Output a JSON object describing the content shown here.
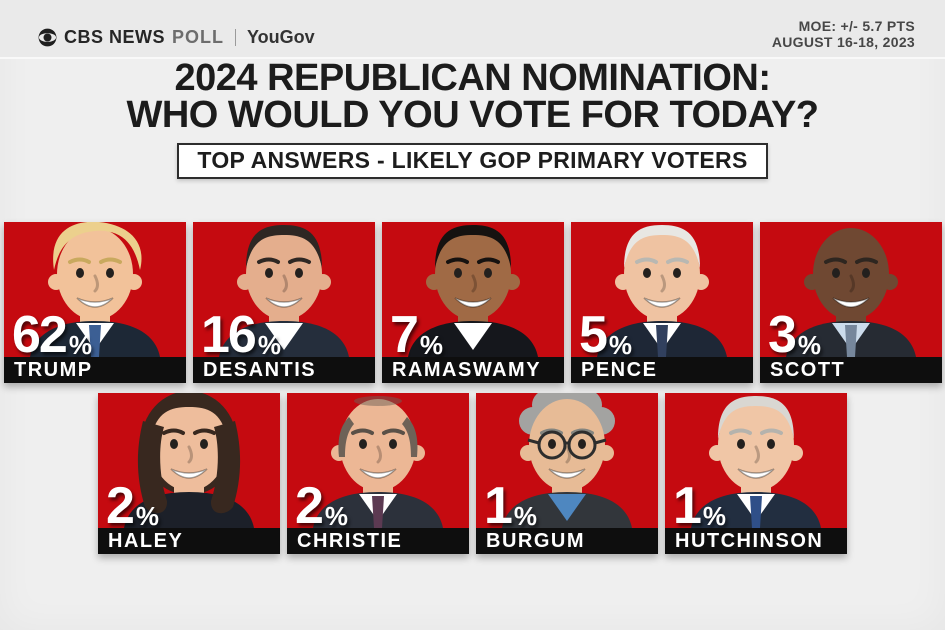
{
  "header": {
    "brand": {
      "network": "CBS NEWS",
      "product": "POLL",
      "divider": "|",
      "partner": "YouGov"
    },
    "moe_line1": "MOE: +/- 5.7 PTS",
    "moe_line2": "AUGUST 16-18, 2023"
  },
  "title": {
    "line1": "2024 REPUBLICAN NOMINATION:",
    "line2": "WHO WOULD YOU VOTE FOR TODAY?"
  },
  "subtitle": "TOP ANSWERS - LIKELY GOP PRIMARY VOTERS",
  "colors": {
    "card_red": "#c50a10",
    "strip_black": "#0e0e0e",
    "background": "#efefef",
    "title_text": "#1c1c1c",
    "pct_text": "#ffffff"
  },
  "icons": {
    "brand_eye": "cbs-eye-icon"
  },
  "chart_data": {
    "type": "bar",
    "title": "2024 REPUBLICAN NOMINATION: WHO WOULD YOU VOTE FOR TODAY?",
    "subtitle": "TOP ANSWERS - LIKELY GOP PRIMARY VOTERS",
    "categories": [
      "TRUMP",
      "DESANTIS",
      "RAMASWAMY",
      "PENCE",
      "SCOTT",
      "HALEY",
      "CHRISTIE",
      "BURGUM",
      "HUTCHINSON"
    ],
    "values": [
      62,
      16,
      7,
      5,
      3,
      2,
      2,
      1,
      1
    ],
    "unit": "%",
    "source": "CBS NEWS POLL | YouGov",
    "margin_of_error": "+/- 5.7 PTS",
    "field_dates": "AUGUST 16-18, 2023",
    "legend": false,
    "layout": "photo-cards-two-rows"
  },
  "rows": [
    [
      {
        "name": "TRUMP",
        "value": "62",
        "unit": "%",
        "avatar": {
          "hair_type": "swept",
          "hair": "#ecd08d",
          "brow": "#c9a95e",
          "skin": "#f2c29a",
          "suit": "#1d2836",
          "shirt": "#ffffff",
          "tie": "#3c5f94",
          "glasses": false
        }
      },
      {
        "name": "DESANTIS",
        "value": "16",
        "unit": "%",
        "avatar": {
          "hair_type": "short",
          "hair": "#2e2723",
          "brow": "#2e2723",
          "skin": "#e4ae8d",
          "suit": "#252e3c",
          "shirt": "#ffffff",
          "tie": null,
          "glasses": false
        }
      },
      {
        "name": "RAMASWAMY",
        "value": "7",
        "unit": "%",
        "avatar": {
          "hair_type": "short",
          "hair": "#161210",
          "brow": "#161210",
          "skin": "#a06a45",
          "suit": "#15171c",
          "shirt": "#ffffff",
          "tie": null,
          "glasses": false
        }
      },
      {
        "name": "PENCE",
        "value": "5",
        "unit": "%",
        "avatar": {
          "hair_type": "short",
          "hair": "#e8e7e3",
          "brow": "#b9b8b2",
          "skin": "#efc3a2",
          "suit": "#1e2736",
          "shirt": "#ffffff",
          "tie": "#31405e",
          "glasses": false
        }
      },
      {
        "name": "SCOTT",
        "value": "3",
        "unit": "%",
        "avatar": {
          "hair_type": "bald",
          "hair": "#2e2620",
          "brow": "#2e2620",
          "skin": "#6f4832",
          "suit": "#262b33",
          "shirt": "#ccdcec",
          "tie": "#76879c",
          "glasses": false
        }
      }
    ],
    [
      {
        "name": "HALEY",
        "value": "2",
        "unit": "%",
        "avatar": {
          "hair_type": "long",
          "hair": "#38281f",
          "brow": "#38281f",
          "skin": "#eebd9c",
          "suit": "#1c2029",
          "shirt": null,
          "tie": null,
          "glasses": false
        }
      },
      {
        "name": "CHRISTIE",
        "value": "2",
        "unit": "%",
        "avatar": {
          "hair_type": "balding",
          "hair": "#6e6257",
          "brow": "#5a5047",
          "skin": "#ecb795",
          "suit": "#2c313b",
          "shirt": "#ffffff",
          "tie": "#5c3a52",
          "glasses": false
        }
      },
      {
        "name": "BURGUM",
        "value": "1",
        "unit": "%",
        "avatar": {
          "hair_type": "curly",
          "hair": "#a3a3a1",
          "brow": "#85857f",
          "skin": "#e7bb96",
          "suit": "#32363b",
          "shirt": "#4e87c0",
          "tie": null,
          "glasses": true
        }
      },
      {
        "name": "HUTCHINSON",
        "value": "1",
        "unit": "%",
        "avatar": {
          "hair_type": "short",
          "hair": "#d9d7d2",
          "brow": "#b5b3ad",
          "skin": "#f0c6a6",
          "suit": "#222e40",
          "shirt": "#ffffff",
          "tie": "#2f4f88",
          "glasses": false
        }
      }
    ]
  ]
}
